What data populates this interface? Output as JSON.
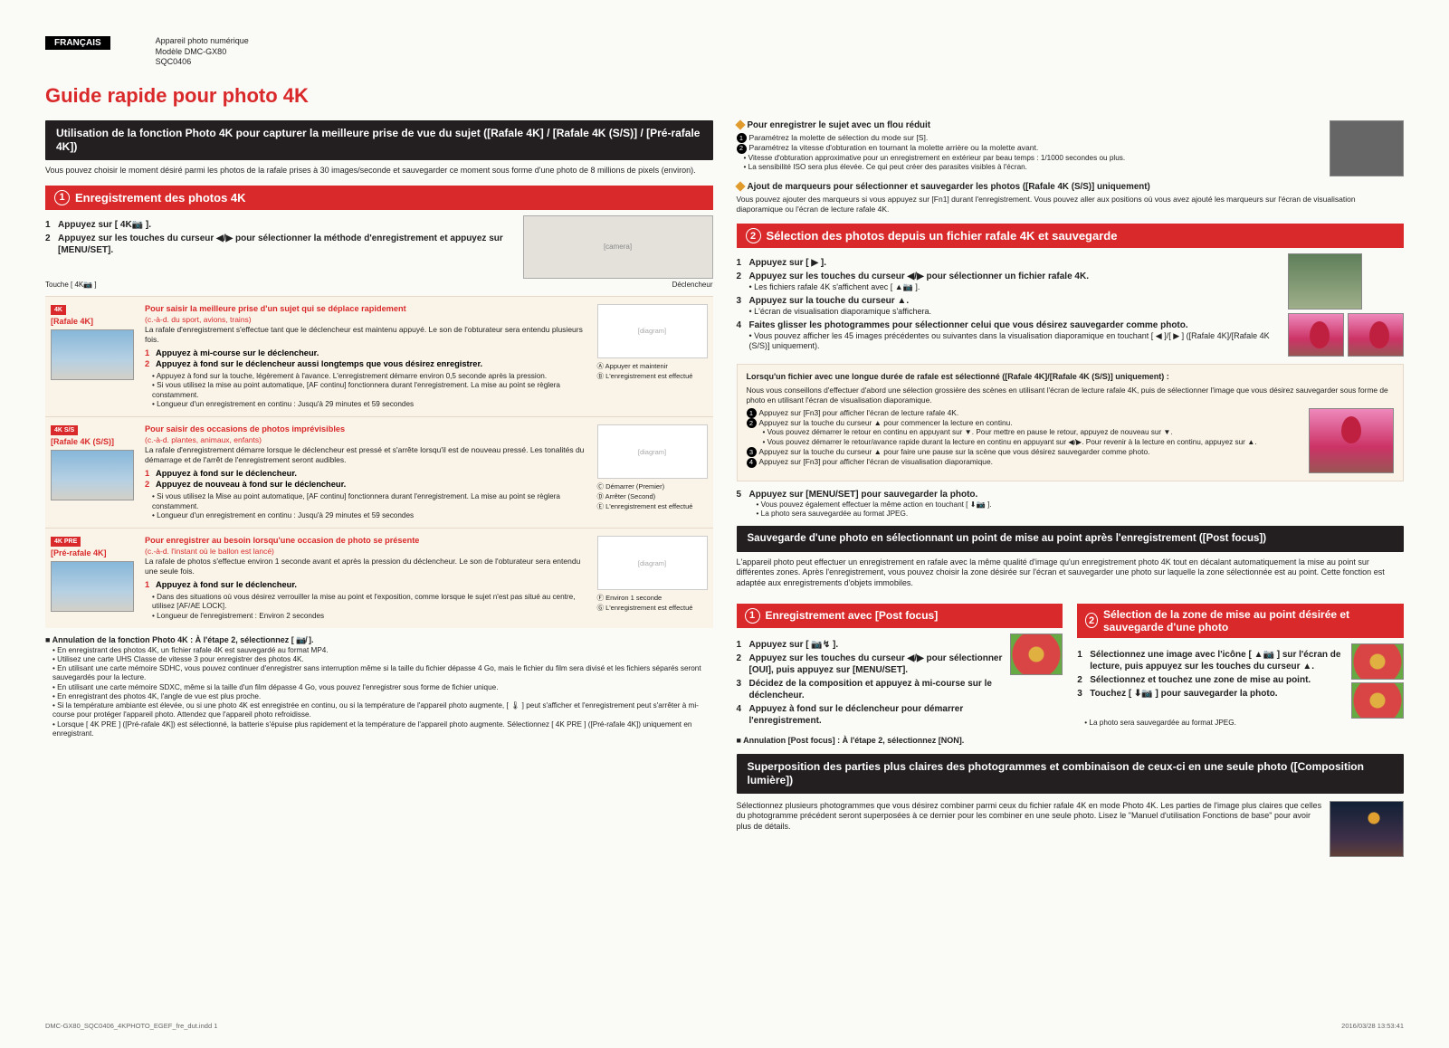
{
  "header": {
    "lang_badge": "FRANÇAIS",
    "meta_line1": "Appareil photo numérique",
    "meta_line2": "Modèle DMC-GX80",
    "meta_line3": "SQC0406"
  },
  "main_title": "Guide rapide pour photo 4K",
  "left": {
    "black_bar": "Utilisation de la fonction Photo 4K pour capturer la meilleure prise de vue du sujet ([Rafale 4K] / [Rafale 4K (S/S)] / [Pré-rafale 4K])",
    "intro": "Vous pouvez choisir le moment désiré parmi les photos de la rafale prises à 30 images/seconde et sauvegarder ce moment sous forme d'une photo de 8 millions de pixels (environ).",
    "section1_title": "Enregistrement des photos 4K",
    "s1_steps": [
      "Appuyez sur [ 4K📷 ].",
      "Appuyez sur les touches du curseur ◀/▶ pour sélectionner la méthode d'enregistrement et appuyez sur [MENU/SET]."
    ],
    "cam_caption_l": "Touche [ 4K📷 ]",
    "cam_caption_r": "Déclencheur",
    "modes": [
      {
        "badge": "4K",
        "label": "[Rafale 4K]",
        "lead": "Pour saisir la meilleure prise d'un sujet qui se déplace rapidement",
        "lead2": "(c.-à-d. du sport, avions, trains)",
        "desc": "La rafale d'enregistrement s'effectue tant que le déclencheur est maintenu appuyé. Le son de l'obturateur sera entendu plusieurs fois.",
        "substeps": [
          "Appuyez à mi-course sur le déclencheur.",
          "Appuyez à fond sur le déclencheur aussi longtemps que vous désirez enregistrer."
        ],
        "notes": [
          "Appuyez à fond sur la touche, légèrement à l'avance. L'enregistrement démarre environ 0,5 seconde après la pression.",
          "Si vous utilisez la mise au point automatique, [AF continu] fonctionnera durant l'enregistrement. La mise au point se règlera constamment.",
          "Longueur d'un enregistrement en continu : Jusqu'à 29 minutes et 59 secondes"
        ],
        "right": [
          "Ⓐ Appuyer et maintenir",
          "Ⓑ L'enregistrement est effectué"
        ]
      },
      {
        "badge": "4K S/S",
        "label": "[Rafale 4K (S/S)]",
        "lead": "Pour saisir des occasions de photos imprévisibles",
        "lead2": "(c.-à-d. plantes, animaux, enfants)",
        "desc": "La rafale d'enregistrement démarre lorsque le déclencheur est pressé et s'arrête lorsqu'il est de nouveau pressé. Les tonalités du démarrage et de l'arrêt de l'enregistrement seront audibles.",
        "substeps": [
          "Appuyez à fond sur le déclencheur.",
          "Appuyez de nouveau à fond sur le déclencheur."
        ],
        "notes": [
          "Si vous utilisez la Mise au point automatique, [AF continu] fonctionnera durant l'enregistrement. La mise au point se règlera constamment.",
          "Longueur d'un enregistrement en continu : Jusqu'à 29 minutes et 59 secondes"
        ],
        "right": [
          "Ⓒ Démarrer (Premier)",
          "Ⓓ Arrêter (Second)",
          "Ⓔ L'enregistrement est effectué"
        ]
      },
      {
        "badge": "4K PRE",
        "label": "[Pré-rafale 4K]",
        "lead": "Pour enregistrer au besoin lorsqu'une occasion de photo se présente",
        "lead2": "(c.-à-d. l'instant où le ballon est lancé)",
        "desc": "La rafale de photos s'effectue environ 1 seconde avant et après la pression du déclencheur. Le son de l'obturateur sera entendu une seule fois.",
        "substeps": [
          "Appuyez à fond sur le déclencheur."
        ],
        "notes": [
          "Dans des situations où vous désirez verrouiller la mise au point et l'exposition, comme lorsque le sujet n'est pas situé au centre, utilisez [AF/AE LOCK].",
          "Longueur de l'enregistrement : Environ 2 secondes"
        ],
        "right": [
          "Ⓕ Environ 1 seconde",
          "Ⓖ L'enregistrement est effectué"
        ]
      }
    ],
    "cancel_title": "■ Annulation de la fonction Photo 4K : À l'étape 2, sélectionnez [ 📷̸ ].",
    "cancel_notes": [
      "En enregistrant des photos 4K, un fichier rafale 4K est sauvegardé au format MP4.",
      "Utilisez une carte UHS Classe de vitesse 3 pour enregistrer des photos 4K.",
      "En utilisant une carte mémoire SDHC, vous pouvez continuer d'enregistrer sans interruption même si la taille du fichier dépasse 4 Go, mais le fichier du film sera divisé et les fichiers séparés seront sauvegardés pour la lecture.",
      "En utilisant une carte mémoire SDXC, même si la taille d'un film dépasse 4 Go, vous pouvez l'enregistrer sous forme de fichier unique.",
      "En enregistrant des photos 4K, l'angle de vue est plus proche.",
      "Si la température ambiante est élevée, ou si une photo 4K est enregistrée en continu, ou si la température de l'appareil photo augmente, [ 🌡 ] peut s'afficher et l'enregistrement peut s'arrêter à mi-course pour protéger l'appareil photo. Attendez que l'appareil photo refroidisse.",
      "Lorsque [ 4K PRE ] ([Pré-rafale 4K]) est sélectionné, la batterie s'épuise plus rapidement et la température de l'appareil photo augmente. Sélectionnez [ 4K PRE ] ([Pré-rafale 4K]) uniquement en enregistrant."
    ]
  },
  "right": {
    "tip1_title": "Pour enregistrer le sujet avec un flou réduit",
    "tip1_items": [
      "Paramétrez la molette de sélection du mode sur [S].",
      "Paramétrez la vitesse d'obturation en tournant la molette arrière ou la molette avant."
    ],
    "tip1_bullets": [
      "Vitesse d'obturation approximative pour un enregistrement en extérieur par beau temps : 1/1000 secondes ou plus.",
      "La sensibilité ISO sera plus élevée. Ce qui peut créer des parasites visibles à l'écran."
    ],
    "tip2_title": "Ajout de marqueurs pour sélectionner et sauvegarder les photos ([Rafale 4K (S/S)] uniquement)",
    "tip2_body": "Vous pouvez ajouter des marqueurs si vous appuyez sur [Fn1] durant l'enregistrement. Vous pouvez aller aux positions où vous avez ajouté les marqueurs sur l'écran de visualisation diaporamique ou l'écran de lecture rafale 4K.",
    "section2_title": "Sélection des photos depuis un fichier rafale 4K et sauvegarde",
    "s2_steps": [
      {
        "t": "Appuyez sur [ ▶ ].",
        "s": ""
      },
      {
        "t": "Appuyez sur les touches du curseur ◀/▶ pour sélectionner un fichier rafale 4K.",
        "s": "Les fichiers rafale 4K s'affichent avec [ ▲📷 ]."
      },
      {
        "t": "Appuyez sur la touche du curseur ▲.",
        "s": "L'écran de visualisation diaporamique s'affichera."
      },
      {
        "t": "Faites glisser les photogrammes pour sélectionner celui que vous désirez sauvegarder comme photo.",
        "s": "Vous pouvez afficher les 45 images précédentes ou suivantes dans la visualisation diaporamique en touchant [ ◀ ]/[ ▶ ] ([Rafale 4K]/[Rafale 4K (S/S)] uniquement)."
      }
    ],
    "box_title": "Lorsqu'un fichier avec une longue durée de rafale est sélectionné ([Rafale 4K]/[Rafale 4K (S/S)] uniquement) :",
    "box_intro": "Nous vous conseillons d'effectuer d'abord une sélection grossière des scènes en utilisant l'écran de lecture rafale 4K, puis de sélectionner l'image que vous désirez sauvegarder sous forme de photo en utilisant l'écran de visualisation diaporamique.",
    "box_items": [
      "Appuyez sur [Fn3] pour afficher l'écran de lecture rafale 4K.",
      "Appuyez sur la touche du curseur ▲ pour commencer la lecture en continu.",
      "Appuyez sur la touche du curseur ▲ pour faire une pause sur la scène que vous désirez sauvegarder comme photo.",
      "Appuyez sur [Fn3] pour afficher l'écran de visualisation diaporamique."
    ],
    "box_sub": [
      "Vous pouvez démarrer le retour en continu en appuyant sur ▼. Pour mettre en pause le retour, appuyez de nouveau sur ▼.",
      "Vous pouvez démarrer le retour/avance rapide durant la lecture en continu en appuyant sur ◀/▶. Pour revenir à la lecture en continu, appuyez sur ▲."
    ],
    "s2_step5": "Appuyez sur [MENU/SET] pour sauvegarder la photo.",
    "s2_step5_subs": [
      "Vous pouvez également effectuer la même action en touchant [ ⬇📷 ].",
      "La photo sera sauvegardée au format JPEG."
    ],
    "black_bar2": "Sauvegarde d'une photo en sélectionnant un point de mise au point après l'enregistrement ([Post focus])",
    "pf_intro": "L'appareil photo peut effectuer un enregistrement en rafale avec la même qualité d'image qu'un enregistrement photo 4K tout en décalant automatiquement la mise au point sur différentes zones. Après l'enregistrement, vous pouvez choisir la zone désirée sur l'écran et sauvegarder une photo sur laquelle la zone sélectionnée est au point. Cette fonction est adaptée aux enregistrements d'objets immobiles.",
    "pf_s1_title": "Enregistrement avec [Post focus]",
    "pf_s1_steps": [
      "Appuyez sur [ 📷↯ ].",
      "Appuyez sur les touches du curseur ◀/▶ pour sélectionner [OUI], puis appuyez sur [MENU/SET].",
      "Décidez de la composition et appuyez à mi-course sur le déclencheur.",
      "Appuyez à fond sur le déclencheur pour démarrer l'enregistrement."
    ],
    "pf_cancel": "■ Annulation [Post focus] : À l'étape 2, sélectionnez [NON].",
    "pf_s2_title": "Sélection de la zone de mise au point désirée et sauvegarde d'une photo",
    "pf_s2_steps": [
      "Sélectionnez une image avec l'icône [ ▲📷 ] sur l'écran de lecture, puis appuyez sur les touches du curseur ▲.",
      "Sélectionnez et touchez une zone de mise au point.",
      "Touchez [ ⬇📷 ] pour sauvegarder la photo."
    ],
    "pf_s2_note": "La photo sera sauvegardée au format JPEG.",
    "black_bar3": "Superposition des parties plus claires des photogrammes et combinaison de ceux-ci en une seule photo ([Composition lumière])",
    "cl_body": "Sélectionnez plusieurs photogrammes que vous désirez combiner parmi ceux du fichier rafale 4K en mode Photo 4K. Les parties de l'image plus claires que celles du photogramme précédent seront superposées à ce dernier pour les combiner en une seule photo. Lisez le \"Manuel d'utilisation Fonctions de base\" pour avoir plus de détails."
  },
  "footer": {
    "left": "DMC-GX80_SQC0406_4KPHOTO_EGEF_fre_dut.indd   1",
    "right": "2016/03/28   13:53:41"
  }
}
